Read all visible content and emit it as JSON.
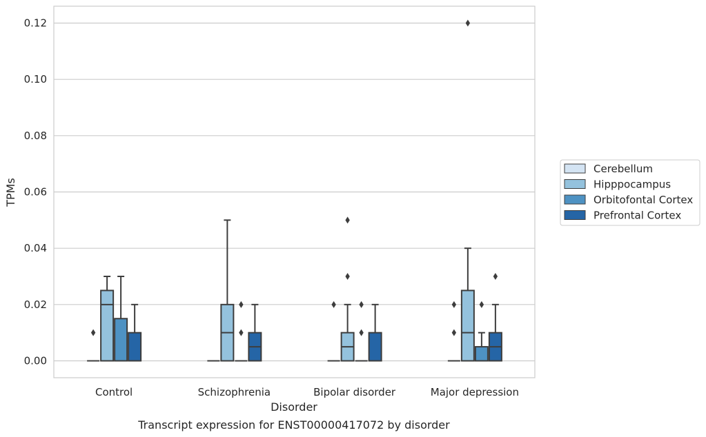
{
  "chart_data": {
    "type": "box",
    "caption": "Transcript expression for ENST00000417072 by disorder",
    "xlabel": "Disorder",
    "ylabel": "TPMs",
    "ylim": [
      -0.006,
      0.126
    ],
    "yticks": [
      "0.00",
      "0.02",
      "0.04",
      "0.06",
      "0.08",
      "0.10",
      "0.12"
    ],
    "grid": "horizontal",
    "legend_position": "right",
    "categories": [
      "Control",
      "Schizophrenia",
      "Bipolar disorder",
      "Major depression"
    ],
    "series": [
      {
        "name": "Cerebellum",
        "color": "#d4e4f3",
        "boxes": [
          {
            "q1": 0,
            "median": 0,
            "q3": 0,
            "whislo": 0,
            "whishi": 0,
            "fliers": [
              0.01
            ]
          },
          {
            "q1": 0,
            "median": 0,
            "q3": 0,
            "whislo": 0,
            "whishi": 0,
            "fliers": []
          },
          {
            "q1": 0,
            "median": 0,
            "q3": 0,
            "whislo": 0,
            "whishi": 0,
            "fliers": [
              0.02
            ]
          },
          {
            "q1": 0,
            "median": 0,
            "q3": 0,
            "whislo": 0,
            "whishi": 0,
            "fliers": [
              0.01,
              0.02
            ]
          }
        ]
      },
      {
        "name": "Hipppocampus",
        "color": "#94c2dd",
        "boxes": [
          {
            "q1": 0,
            "median": 0.02,
            "q3": 0.025,
            "whislo": 0,
            "whishi": 0.03,
            "fliers": []
          },
          {
            "q1": 0,
            "median": 0.01,
            "q3": 0.02,
            "whislo": 0,
            "whishi": 0.05,
            "fliers": []
          },
          {
            "q1": 0,
            "median": 0.005,
            "q3": 0.01,
            "whislo": 0,
            "whishi": 0.02,
            "fliers": [
              0.03,
              0.05
            ]
          },
          {
            "q1": 0,
            "median": 0.01,
            "q3": 0.025,
            "whislo": 0,
            "whishi": 0.04,
            "fliers": [
              0.12
            ]
          }
        ]
      },
      {
        "name": "Orbitofontal Cortex",
        "color": "#4e92c3",
        "boxes": [
          {
            "q1": 0,
            "median": 0,
            "q3": 0.015,
            "whislo": 0,
            "whishi": 0.03,
            "fliers": []
          },
          {
            "q1": 0,
            "median": 0,
            "q3": 0,
            "whislo": 0,
            "whishi": 0,
            "fliers": [
              0.01,
              0.02
            ]
          },
          {
            "q1": 0,
            "median": 0,
            "q3": 0,
            "whislo": 0,
            "whishi": 0,
            "fliers": [
              0.01,
              0.02
            ]
          },
          {
            "q1": 0,
            "median": 0,
            "q3": 0.005,
            "whislo": 0,
            "whishi": 0.01,
            "fliers": [
              0.02
            ]
          }
        ]
      },
      {
        "name": "Prefrontal Cortex",
        "color": "#2565a6",
        "boxes": [
          {
            "q1": 0,
            "median": 0,
            "q3": 0.01,
            "whislo": 0,
            "whishi": 0.02,
            "fliers": []
          },
          {
            "q1": 0,
            "median": 0.005,
            "q3": 0.01,
            "whislo": 0,
            "whishi": 0.02,
            "fliers": []
          },
          {
            "q1": 0,
            "median": 0,
            "q3": 0.01,
            "whislo": 0,
            "whishi": 0.02,
            "fliers": []
          },
          {
            "q1": 0,
            "median": 0.005,
            "q3": 0.01,
            "whislo": 0,
            "whishi": 0.02,
            "fliers": [
              0.03
            ]
          }
        ]
      }
    ]
  }
}
